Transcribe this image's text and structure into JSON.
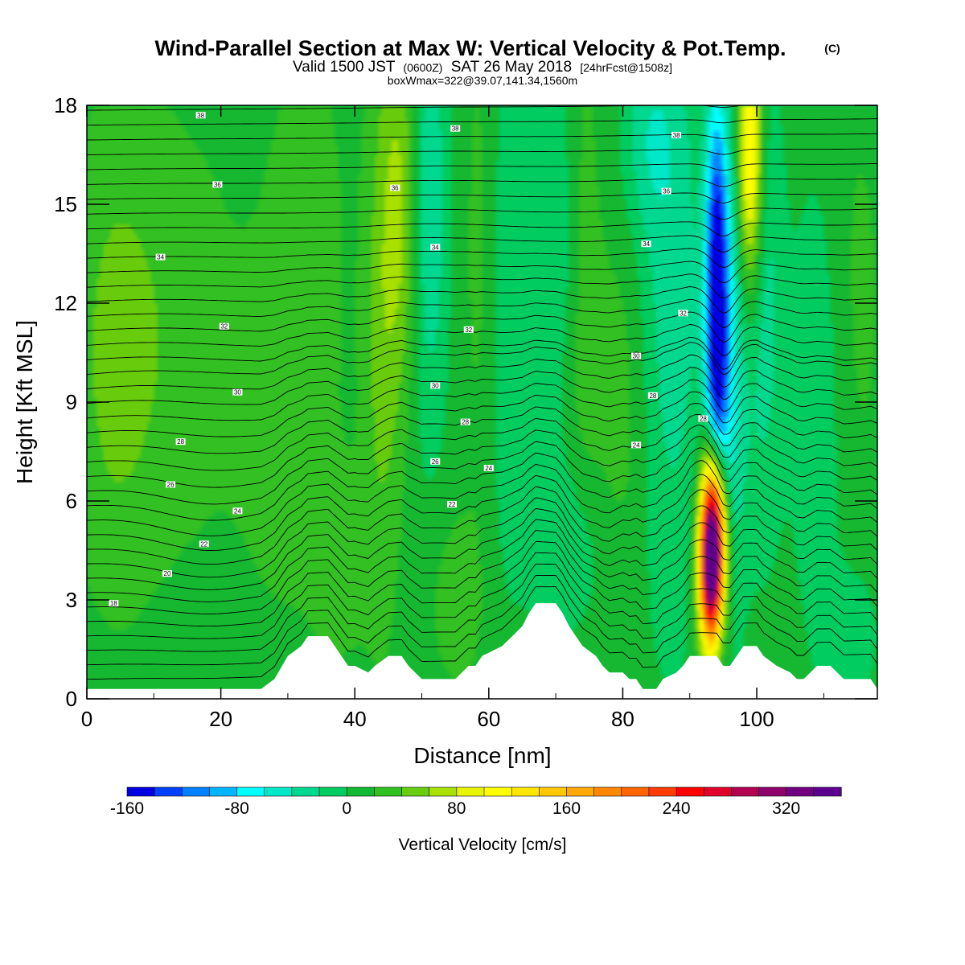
{
  "chart_data": {
    "type": "heatmap",
    "title": "Wind-Parallel Section at Max W: Vertical Velocity & Pot.Temp.",
    "copyright_mark": "(C)",
    "subtitle_main": "Valid 1500 JST",
    "subtitle_z": "(0600Z)",
    "subtitle_date": "SAT 26 May 2018",
    "subtitle_fcst": "[24hrFcst@1508z]",
    "subtitle_box": "boxWmax=322@39.07,141.34,1560m",
    "xlabel": "Distance [nm]",
    "ylabel": "Height [Kft MSL]",
    "xlim": [
      0,
      118
    ],
    "ylim": [
      0,
      18
    ],
    "x_ticks": [
      0,
      20,
      40,
      60,
      80,
      100
    ],
    "y_ticks": [
      0,
      3,
      6,
      9,
      12,
      15,
      18
    ],
    "x_tick_labels": [
      "0",
      "20",
      "40",
      "60",
      "80",
      "100"
    ],
    "y_tick_labels": [
      "0",
      "3",
      "6",
      "9",
      "12",
      "15",
      "18"
    ],
    "colorbar": {
      "label": "Vertical Velocity [cm/s]",
      "min": -160,
      "max": 360,
      "step": 20,
      "tick_values": [
        -160,
        -80,
        0,
        80,
        160,
        240,
        320
      ],
      "tick_labels": [
        "-160",
        "-80",
        "0",
        "80",
        "160",
        "240",
        "320"
      ],
      "colors": [
        "#0000e0",
        "#0040ff",
        "#0080ff",
        "#00b4ff",
        "#00ffff",
        "#00e8c8",
        "#00d890",
        "#00cc60",
        "#12b832",
        "#30c020",
        "#68cc10",
        "#a8e000",
        "#e8f400",
        "#ffff00",
        "#ffe600",
        "#ffc800",
        "#ffa800",
        "#ff8800",
        "#ff6400",
        "#ff3c00",
        "#ff0000",
        "#e0002c",
        "#b40050",
        "#90006c",
        "#700080",
        "#5c0090"
      ]
    },
    "background_w": 10,
    "w_features": [
      {
        "x": 10,
        "z": 11,
        "sx": 9,
        "sz": 5,
        "w": 25
      },
      {
        "x": 4,
        "z": 10,
        "sx": 4,
        "sz": 5,
        "w": 20
      },
      {
        "x": 33,
        "z": 15,
        "sx": 4,
        "sz": 4,
        "w": 18
      },
      {
        "x": 30,
        "z": 8,
        "sx": 5,
        "sz": 4,
        "w": 20
      },
      {
        "x": 44,
        "z": 11,
        "sx": 2,
        "sz": 6,
        "w": 35
      },
      {
        "x": 47,
        "z": 15,
        "sx": 2,
        "sz": 4,
        "w": 50
      },
      {
        "x": 51,
        "z": 15,
        "sx": 2,
        "sz": 5,
        "w": -50
      },
      {
        "x": 59,
        "z": 13,
        "sx": 2,
        "sz": 6,
        "w": 28
      },
      {
        "x": 62,
        "z": 12,
        "sx": 3,
        "sz": 6,
        "w": -30
      },
      {
        "x": 70,
        "z": 14,
        "sx": 3,
        "sz": 4,
        "w": -30
      },
      {
        "x": 74,
        "z": 13,
        "sx": 2,
        "sz": 6,
        "w": 25
      },
      {
        "x": 80,
        "z": 9,
        "sx": 3,
        "sz": 4,
        "w": 25
      },
      {
        "x": 87,
        "z": 12,
        "sx": 4,
        "sz": 7,
        "w": -40
      },
      {
        "x": 84,
        "z": 17,
        "sx": 3,
        "sz": 2,
        "w": -30
      },
      {
        "x": 93.5,
        "z": 5,
        "sx": 1.3,
        "sz": 1.8,
        "w": 360
      },
      {
        "x": 93,
        "z": 3.3,
        "sx": 1.2,
        "sz": 1.5,
        "w": 150
      },
      {
        "x": 94,
        "z": 12,
        "sx": 1.1,
        "sz": 4,
        "w": -160
      },
      {
        "x": 95.5,
        "z": 10,
        "sx": 2,
        "sz": 5,
        "w": -70
      },
      {
        "x": 99,
        "z": 16.5,
        "sx": 1.3,
        "sz": 3,
        "w": 130
      },
      {
        "x": 101,
        "z": 12,
        "sx": 2,
        "sz": 5,
        "w": -40
      },
      {
        "x": 109,
        "z": 9,
        "sx": 3,
        "sz": 5,
        "w": -25
      },
      {
        "x": 115,
        "z": 12,
        "sx": 3,
        "sz": 5,
        "w": 15
      },
      {
        "x": 114,
        "z": 2,
        "sx": 3,
        "sz": 1.5,
        "w": -25
      },
      {
        "x": 55,
        "z": 3,
        "sx": 3,
        "sz": 2,
        "w": 20
      },
      {
        "x": 72,
        "z": 4.5,
        "sx": 4,
        "sz": 2,
        "w": -30
      },
      {
        "x": 38,
        "z": 4,
        "sx": 3,
        "sz": 2,
        "w": 20
      }
    ],
    "terrain": [
      [
        0,
        0.3
      ],
      [
        26,
        0.3
      ],
      [
        28,
        0.6
      ],
      [
        30,
        1.3
      ],
      [
        32,
        1.6
      ],
      [
        33,
        1.9
      ],
      [
        36,
        1.9
      ],
      [
        37,
        1.6
      ],
      [
        38,
        1.3
      ],
      [
        39,
        1.0
      ],
      [
        40,
        1.0
      ],
      [
        42,
        0.8
      ],
      [
        43,
        1.0
      ],
      [
        45,
        1.3
      ],
      [
        47,
        1.3
      ],
      [
        48,
        1.0
      ],
      [
        49,
        0.8
      ],
      [
        50,
        0.6
      ],
      [
        55,
        0.6
      ],
      [
        56,
        0.8
      ],
      [
        57,
        1.0
      ],
      [
        58,
        1.0
      ],
      [
        59,
        1.3
      ],
      [
        62,
        1.6
      ],
      [
        65,
        2.2
      ],
      [
        66,
        2.6
      ],
      [
        67,
        2.9
      ],
      [
        70,
        2.9
      ],
      [
        71,
        2.6
      ],
      [
        72,
        2.2
      ],
      [
        73,
        1.9
      ],
      [
        74,
        1.6
      ],
      [
        76,
        1.3
      ],
      [
        77,
        1.0
      ],
      [
        78,
        0.8
      ],
      [
        80,
        0.8
      ],
      [
        81,
        0.6
      ],
      [
        82,
        0.6
      ],
      [
        83,
        0.3
      ],
      [
        85,
        0.3
      ],
      [
        86,
        0.6
      ],
      [
        88,
        0.8
      ],
      [
        89,
        1.0
      ],
      [
        90,
        1.3
      ],
      [
        94,
        1.3
      ],
      [
        95,
        1.0
      ],
      [
        96,
        1.0
      ],
      [
        97,
        1.3
      ],
      [
        98,
        1.6
      ],
      [
        100,
        1.6
      ],
      [
        101,
        1.3
      ],
      [
        103,
        1.0
      ],
      [
        105,
        0.8
      ],
      [
        106,
        0.6
      ],
      [
        107,
        0.6
      ],
      [
        108,
        0.8
      ],
      [
        109,
        1.0
      ],
      [
        111,
        1.0
      ],
      [
        112,
        0.8
      ],
      [
        113,
        0.6
      ],
      [
        117,
        0.6
      ],
      [
        118,
        0.3
      ]
    ],
    "theta_contours": [
      {
        "offset": 0.3
      },
      {
        "offset": 0.75
      },
      {
        "offset": 1.2
      },
      {
        "offset": 1.65
      },
      {
        "offset": 2.1
      },
      {
        "offset": 2.55
      },
      {
        "offset": 3.0
      },
      {
        "offset": 3.45
      },
      {
        "offset": 3.9
      },
      {
        "offset": 4.35
      },
      {
        "offset": 4.8
      },
      {
        "offset": 5.25
      },
      {
        "offset": 5.7
      },
      {
        "offset": 6.15
      },
      {
        "offset": 6.6
      },
      {
        "offset": 7.05
      },
      {
        "offset": 7.5
      },
      {
        "offset": 7.95
      },
      {
        "offset": 8.4
      },
      {
        "offset": 8.85
      },
      {
        "offset": 9.3
      },
      {
        "offset": 9.75
      },
      {
        "offset": 10.2
      },
      {
        "offset": 10.65
      },
      {
        "offset": 11.1
      },
      {
        "offset": 11.55
      },
      {
        "offset": 12.0
      },
      {
        "offset": 12.45
      },
      {
        "offset": 12.9
      },
      {
        "offset": 13.35
      },
      {
        "offset": 13.8
      },
      {
        "offset": 14.25
      },
      {
        "offset": 14.7
      },
      {
        "offset": 15.15
      },
      {
        "offset": 15.6
      },
      {
        "offset": 16.05
      },
      {
        "offset": 16.5
      },
      {
        "offset": 16.95
      },
      {
        "offset": 17.4
      },
      {
        "offset": 17.85
      }
    ],
    "contour_labels": [
      {
        "x": 17,
        "z": 17.7,
        "text": "38"
      },
      {
        "x": 55,
        "z": 17.3,
        "text": "38"
      },
      {
        "x": 88,
        "z": 17.1,
        "text": "38"
      },
      {
        "x": 19.5,
        "z": 15.6,
        "text": "36"
      },
      {
        "x": 46,
        "z": 15.5,
        "text": "36"
      },
      {
        "x": 86.5,
        "z": 15.4,
        "text": "36"
      },
      {
        "x": 11,
        "z": 13.4,
        "text": "34"
      },
      {
        "x": 52,
        "z": 13.7,
        "text": "34"
      },
      {
        "x": 83.5,
        "z": 13.8,
        "text": "34"
      },
      {
        "x": 20.5,
        "z": 11.3,
        "text": "32"
      },
      {
        "x": 57,
        "z": 11.2,
        "text": "32"
      },
      {
        "x": 89,
        "z": 11.7,
        "text": "32"
      },
      {
        "x": 22.5,
        "z": 9.3,
        "text": "30"
      },
      {
        "x": 52,
        "z": 9.5,
        "text": "30"
      },
      {
        "x": 82,
        "z": 10.4,
        "text": "30"
      },
      {
        "x": 56.5,
        "z": 8.4,
        "text": "28"
      },
      {
        "x": 84.5,
        "z": 9.2,
        "text": "28"
      },
      {
        "x": 92,
        "z": 8.5,
        "text": "28"
      },
      {
        "x": 14,
        "z": 7.8,
        "text": "28"
      },
      {
        "x": 12.5,
        "z": 6.5,
        "text": "26"
      },
      {
        "x": 52,
        "z": 7.2,
        "text": "26"
      },
      {
        "x": 22.5,
        "z": 5.7,
        "text": "24"
      },
      {
        "x": 60,
        "z": 7.0,
        "text": "24"
      },
      {
        "x": 82,
        "z": 7.7,
        "text": "24"
      },
      {
        "x": 54.5,
        "z": 5.9,
        "text": "22"
      },
      {
        "x": 17.5,
        "z": 4.7,
        "text": "22"
      },
      {
        "x": 12,
        "z": 3.8,
        "text": "20"
      },
      {
        "x": 4,
        "z": 2.9,
        "text": "18"
      }
    ]
  }
}
